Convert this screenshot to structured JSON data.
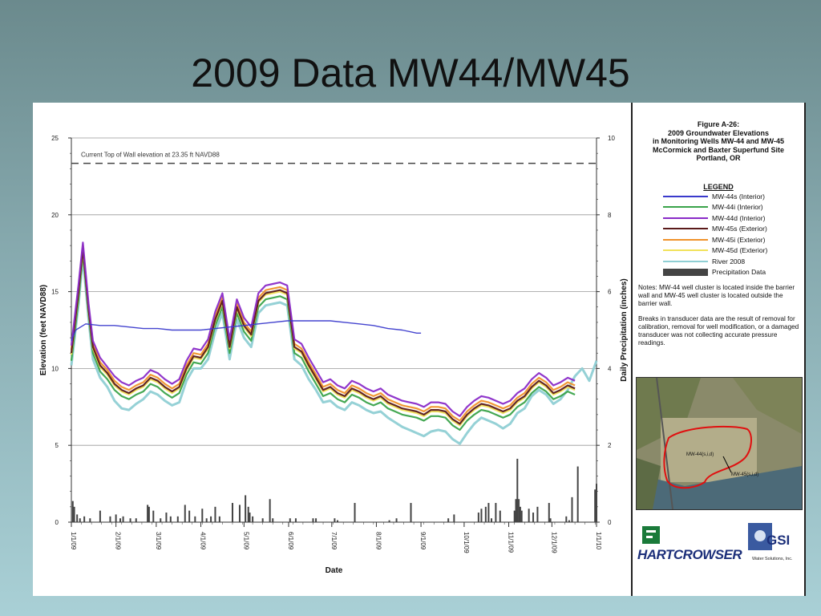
{
  "slide": {
    "title": "2009 Data MW44/MW45"
  },
  "figure": {
    "title_lines": [
      "Figure A-26:",
      "2009 Groundwater Elevations",
      "in Monitoring Wells MW-44 and MW-45",
      "McCormick and Baxter Superfund Site",
      "Portland, OR"
    ],
    "legend_title": "LEGEND",
    "legend": [
      {
        "label": "MW-44s (Interior)",
        "color": "#3a3acc",
        "kind": "line"
      },
      {
        "label": "MW-44i (Interior)",
        "color": "#3aa34a",
        "kind": "line"
      },
      {
        "label": "MW-44d (Interior)",
        "color": "#8a2bc8",
        "kind": "line"
      },
      {
        "label": "MW-45s (Exterior)",
        "color": "#5a1a1a",
        "kind": "line"
      },
      {
        "label": "MW-45i (Exterior)",
        "color": "#f0922a",
        "kind": "line"
      },
      {
        "label": "MW-45d (Exterior)",
        "color": "#f2e25a",
        "kind": "line"
      },
      {
        "label": "River 2008",
        "color": "#8fcfd4",
        "kind": "line"
      },
      {
        "label": "Precipitation Data",
        "color": "#444444",
        "kind": "bar"
      }
    ],
    "notes": [
      "Notes: MW-44 well cluster is located inside the barrier wall and MW-45 well cluster is located outside the barrier wall.",
      "Breaks in transducer data are the result of removal for calibration, removal for well modification, or a damaged transducer was not collecting accurate pressure readings."
    ],
    "aerial_labels": {
      "well44": "MW-44(s,i,d)",
      "well45": "MW-45(s,i,d)"
    },
    "logos": {
      "hartcrowser": "HARTCROWSER",
      "gsi": "GSI",
      "gsi_sub": "Water Solutions, Inc."
    }
  },
  "chart_data": {
    "type": "line",
    "xlabel": "Date",
    "ylabel": "Elevation (feet NAVD88)",
    "y2label": "Daily Precipitation (inches)",
    "x_ticks": [
      "1/1/09",
      "2/1/09",
      "3/1/09",
      "4/1/09",
      "5/1/09",
      "6/1/09",
      "7/1/09",
      "8/1/09",
      "9/1/09",
      "10/1/09",
      "11/1/09",
      "12/1/09",
      "1/1/10"
    ],
    "ylim": [
      0,
      25
    ],
    "y_ticks": [
      0,
      5,
      10,
      15,
      20,
      25
    ],
    "y2lim": [
      0,
      10
    ],
    "y2_ticks": [
      0,
      2,
      4,
      6,
      8,
      10
    ],
    "grid": "horizontal",
    "reference_line": {
      "value": 23.35,
      "label": "Current Top of Wall elevation at 23.35 ft NAVD88"
    },
    "series": [
      {
        "name": "MW-44s (Interior)",
        "color": "#3a3acc",
        "x": [
          0,
          3,
          10,
          20,
          30,
          40,
          50,
          60,
          70,
          80,
          90,
          100,
          110,
          120,
          130,
          140,
          150,
          160,
          170,
          180,
          190,
          200,
          210,
          220,
          230,
          240,
          243
        ],
        "y": [
          11.8,
          12.5,
          12.9,
          12.8,
          12.8,
          12.7,
          12.6,
          12.6,
          12.5,
          12.5,
          12.5,
          12.6,
          12.7,
          12.8,
          12.9,
          13.0,
          13.1,
          13.1,
          13.1,
          13.1,
          13.0,
          12.9,
          12.8,
          12.6,
          12.5,
          12.3,
          12.3
        ]
      },
      {
        "name": "MW-44i (Interior)",
        "color": "#3aa34a",
        "x": [
          0,
          5,
          8,
          12,
          15,
          20,
          25,
          30,
          35,
          40,
          45,
          50,
          55,
          60,
          65,
          70,
          75,
          80,
          85,
          90,
          95,
          100,
          105,
          110,
          115,
          120,
          125,
          130,
          135,
          140,
          145,
          150,
          155,
          160,
          165,
          170,
          175,
          180,
          185,
          190,
          195,
          200,
          205,
          210,
          215,
          220,
          225,
          230,
          235,
          240,
          245,
          250,
          255,
          260,
          265,
          270,
          275,
          280,
          285,
          290,
          295,
          300,
          305,
          310,
          315,
          320,
          325,
          330,
          335,
          340,
          345,
          350
        ],
        "y": [
          10.5,
          14.5,
          17.5,
          13.5,
          11.0,
          9.8,
          9.3,
          8.6,
          8.2,
          8.0,
          8.3,
          8.5,
          9.0,
          8.8,
          8.4,
          8.1,
          8.4,
          9.6,
          10.4,
          10.3,
          11.0,
          12.8,
          14.0,
          11.0,
          13.6,
          12.4,
          11.8,
          14.0,
          14.5,
          14.6,
          14.7,
          14.5,
          11.0,
          10.7,
          9.8,
          9.0,
          8.2,
          8.4,
          8.0,
          7.8,
          8.3,
          8.1,
          7.8,
          7.6,
          7.8,
          7.4,
          7.2,
          7.0,
          6.9,
          6.8,
          6.6,
          6.9,
          6.9,
          6.8,
          6.3,
          6.0,
          6.6,
          7.0,
          7.3,
          7.2,
          7.0,
          6.8,
          7.0,
          7.5,
          7.8,
          8.4,
          8.8,
          8.5,
          8.0,
          8.2,
          8.5,
          8.3
        ]
      },
      {
        "name": "MW-44d (Interior)",
        "color": "#8a2bc8",
        "x": [
          0,
          5,
          8,
          12,
          15,
          20,
          25,
          30,
          35,
          40,
          45,
          50,
          55,
          60,
          65,
          70,
          75,
          80,
          85,
          90,
          95,
          100,
          105,
          110,
          115,
          120,
          125,
          130,
          135,
          140,
          145,
          150,
          155,
          160,
          165,
          170,
          175,
          180,
          185,
          190,
          195,
          200,
          205,
          210,
          215,
          220,
          225,
          230,
          235,
          240,
          245,
          250,
          255,
          260,
          265,
          270,
          275,
          280,
          285,
          290,
          295,
          300,
          305,
          310,
          315,
          320,
          325,
          330,
          335,
          340,
          345,
          350
        ],
        "y": [
          11.5,
          15.5,
          18.2,
          14.2,
          11.8,
          10.7,
          10.1,
          9.5,
          9.1,
          8.9,
          9.2,
          9.4,
          9.9,
          9.7,
          9.3,
          9.0,
          9.3,
          10.5,
          11.3,
          11.2,
          11.9,
          13.7,
          14.9,
          11.9,
          14.5,
          13.3,
          12.7,
          14.9,
          15.4,
          15.5,
          15.6,
          15.4,
          11.9,
          11.6,
          10.7,
          9.9,
          9.1,
          9.3,
          8.9,
          8.7,
          9.2,
          9.0,
          8.7,
          8.5,
          8.7,
          8.3,
          8.1,
          7.9,
          7.8,
          7.7,
          7.5,
          7.8,
          7.8,
          7.7,
          7.2,
          6.9,
          7.5,
          7.9,
          8.2,
          8.1,
          7.9,
          7.7,
          7.9,
          8.4,
          8.7,
          9.3,
          9.7,
          9.4,
          8.9,
          9.1,
          9.4,
          9.2
        ]
      },
      {
        "name": "MW-45s (Exterior)",
        "color": "#5a1a1a",
        "x": [
          0,
          5,
          8,
          12,
          15,
          20,
          25,
          30,
          35,
          40,
          45,
          50,
          55,
          60,
          65,
          70,
          75,
          80,
          85,
          90,
          95,
          100,
          105,
          110,
          115,
          120,
          125,
          130,
          135,
          140,
          145,
          150,
          155,
          160,
          165,
          170,
          175,
          180,
          185,
          190,
          195,
          200,
          205,
          210,
          215,
          220,
          225,
          230,
          235,
          240,
          245,
          250,
          255,
          260,
          265,
          270,
          275,
          280,
          285,
          290,
          295,
          300,
          305,
          310,
          315,
          320,
          325,
          330,
          335,
          340,
          345,
          350
        ],
        "y": [
          11.0,
          15.0,
          17.8,
          13.8,
          11.4,
          10.2,
          9.7,
          9.0,
          8.6,
          8.4,
          8.7,
          8.9,
          9.4,
          9.2,
          8.8,
          8.5,
          8.8,
          10.0,
          10.8,
          10.7,
          11.4,
          13.2,
          14.4,
          11.4,
          14.0,
          12.8,
          12.2,
          14.4,
          14.9,
          15.0,
          15.1,
          14.9,
          11.4,
          11.1,
          10.2,
          9.4,
          8.6,
          8.8,
          8.4,
          8.2,
          8.7,
          8.5,
          8.2,
          8.0,
          8.2,
          7.8,
          7.6,
          7.4,
          7.3,
          7.2,
          7.0,
          7.3,
          7.3,
          7.2,
          6.7,
          6.4,
          7.0,
          7.4,
          7.7,
          7.6,
          7.4,
          7.2,
          7.4,
          7.9,
          8.2,
          8.8,
          9.2,
          8.9,
          8.4,
          8.6,
          8.9,
          8.7
        ]
      },
      {
        "name": "MW-45i (Exterior)",
        "color": "#f0922a",
        "x": [
          0,
          5,
          8,
          12,
          15,
          20,
          25,
          30,
          35,
          40,
          45,
          50,
          55,
          60,
          65,
          70,
          75,
          80,
          85,
          90,
          95,
          100,
          105,
          110,
          115,
          120,
          125,
          130,
          135,
          140,
          145,
          150,
          155,
          160,
          165,
          170,
          175,
          180,
          185,
          190,
          195,
          200,
          205,
          210,
          215,
          220,
          225,
          230,
          235,
          240,
          245,
          250,
          255,
          260,
          265,
          270,
          275,
          280,
          285,
          290,
          295,
          300,
          305,
          310,
          315,
          320,
          325,
          330,
          335,
          340,
          345,
          350
        ],
        "y": [
          11.2,
          15.2,
          18.0,
          14.0,
          11.6,
          10.4,
          9.9,
          9.2,
          8.8,
          8.6,
          8.9,
          9.1,
          9.6,
          9.4,
          9.0,
          8.7,
          9.0,
          10.2,
          11.0,
          10.9,
          11.6,
          13.4,
          14.6,
          11.6,
          14.2,
          13.0,
          12.4,
          14.6,
          15.1,
          15.2,
          15.3,
          15.1,
          11.6,
          11.3,
          10.4,
          9.6,
          8.8,
          9.0,
          8.6,
          8.4,
          8.9,
          8.7,
          8.4,
          8.2,
          8.4,
          8.0,
          7.8,
          7.6,
          7.5,
          7.4,
          7.2,
          7.5,
          7.5,
          7.4,
          6.9,
          6.6,
          7.2,
          7.6,
          7.9,
          7.8,
          7.6,
          7.4,
          7.6,
          8.1,
          8.4,
          9.0,
          9.4,
          9.1,
          8.6,
          8.8,
          9.1,
          8.9
        ]
      },
      {
        "name": "MW-45d (Exterior)",
        "color": "#f2e25a",
        "x": [
          0,
          5,
          8,
          12,
          15,
          20,
          25,
          30,
          35,
          40,
          45,
          50,
          55,
          60,
          65,
          70,
          75,
          80,
          85,
          90,
          95,
          100,
          105,
          110,
          115,
          120,
          125,
          130,
          135,
          140,
          145,
          150,
          155,
          160,
          165,
          170,
          175,
          180,
          185,
          190,
          195,
          200,
          205,
          210,
          215,
          220,
          225,
          230,
          235,
          240,
          245,
          250,
          255,
          260,
          265,
          270,
          275,
          280,
          285,
          290,
          295,
          300,
          305,
          310,
          315,
          320,
          325,
          330,
          335,
          340,
          345,
          350
        ],
        "y": [
          10.9,
          14.9,
          17.7,
          13.7,
          11.3,
          10.1,
          9.6,
          8.9,
          8.5,
          8.3,
          8.6,
          8.8,
          9.3,
          9.1,
          8.7,
          8.4,
          8.7,
          9.9,
          10.7,
          10.6,
          11.3,
          13.1,
          14.3,
          11.3,
          13.9,
          12.7,
          12.1,
          14.3,
          14.8,
          14.9,
          15.0,
          14.8,
          11.3,
          11.0,
          10.1,
          9.3,
          8.5,
          8.7,
          8.3,
          8.1,
          8.6,
          8.4,
          8.1,
          7.9,
          8.1,
          7.7,
          7.5,
          7.3,
          7.2,
          7.1,
          6.9,
          7.2,
          7.2,
          7.1,
          6.6,
          6.3,
          6.9,
          7.3,
          7.6,
          7.5,
          7.3,
          7.1,
          7.3,
          7.8,
          8.1,
          8.7,
          9.1,
          8.8,
          8.3,
          8.5,
          8.8,
          8.6
        ]
      },
      {
        "name": "River 2008",
        "color": "#8fcfd4",
        "x": [
          0,
          5,
          8,
          12,
          15,
          20,
          25,
          30,
          35,
          40,
          45,
          50,
          55,
          60,
          65,
          70,
          75,
          80,
          85,
          90,
          95,
          100,
          105,
          110,
          115,
          120,
          125,
          130,
          135,
          140,
          145,
          150,
          155,
          160,
          165,
          170,
          175,
          180,
          185,
          190,
          195,
          200,
          205,
          210,
          215,
          220,
          225,
          230,
          235,
          240,
          245,
          250,
          255,
          260,
          265,
          270,
          275,
          280,
          285,
          290,
          295,
          300,
          305,
          310,
          315,
          320,
          325,
          330,
          335,
          340,
          345,
          350,
          355,
          360,
          365
        ],
        "y": [
          10.2,
          14.2,
          17.2,
          13.2,
          10.6,
          9.4,
          8.8,
          7.9,
          7.4,
          7.3,
          7.7,
          8.0,
          8.5,
          8.3,
          7.9,
          7.6,
          7.8,
          9.2,
          10.0,
          10.0,
          10.6,
          12.4,
          13.6,
          10.6,
          13.2,
          12.0,
          11.4,
          13.6,
          14.1,
          14.2,
          14.3,
          14.1,
          10.6,
          10.2,
          9.3,
          8.6,
          7.8,
          7.9,
          7.5,
          7.3,
          7.8,
          7.6,
          7.3,
          7.1,
          7.2,
          6.8,
          6.5,
          6.2,
          6.0,
          5.8,
          5.6,
          5.9,
          6.0,
          5.9,
          5.4,
          5.1,
          5.8,
          6.4,
          6.8,
          6.6,
          6.4,
          6.1,
          6.4,
          7.1,
          7.4,
          8.2,
          8.6,
          8.3,
          7.7,
          8.0,
          8.6,
          9.5,
          10.0,
          9.2,
          10.5
        ]
      }
    ],
    "precipitation": {
      "name": "Precipitation Data",
      "day": [
        1,
        2,
        4,
        6,
        9,
        13,
        20,
        27,
        31,
        34,
        36,
        41,
        45,
        53,
        54,
        57,
        62,
        66,
        69,
        74,
        79,
        82,
        86,
        91,
        94,
        97,
        100,
        103,
        112,
        117,
        121,
        123,
        124,
        126,
        133,
        138,
        140,
        152,
        156,
        168,
        170,
        183,
        185,
        197,
        221,
        226,
        236,
        262,
        266,
        283,
        285,
        288,
        290,
        292,
        295,
        298,
        308,
        309,
        310,
        311,
        312,
        313,
        318,
        321,
        324,
        332,
        333,
        344,
        346,
        348,
        352,
        364,
        365
      ],
      "inches": [
        0.55,
        0.4,
        0.2,
        0.1,
        0.15,
        0.1,
        0.3,
        0.15,
        0.2,
        0.1,
        0.15,
        0.1,
        0.1,
        0.45,
        0.4,
        0.3,
        0.1,
        0.25,
        0.15,
        0.15,
        0.45,
        0.3,
        0.15,
        0.35,
        0.1,
        0.15,
        0.4,
        0.15,
        0.5,
        0.45,
        0.7,
        0.4,
        0.25,
        0.15,
        0.1,
        0.6,
        0.1,
        0.1,
        0.1,
        0.1,
        0.1,
        0.1,
        0.05,
        0.5,
        0.05,
        0.1,
        0.5,
        0.1,
        0.2,
        0.25,
        0.35,
        0.4,
        0.5,
        0.1,
        0.5,
        0.3,
        0.3,
        0.6,
        1.65,
        0.6,
        0.4,
        0.3,
        0.35,
        0.25,
        0.4,
        0.5,
        0.1,
        0.15,
        0.05,
        0.65,
        1.45,
        0.85,
        1.0
      ]
    }
  }
}
